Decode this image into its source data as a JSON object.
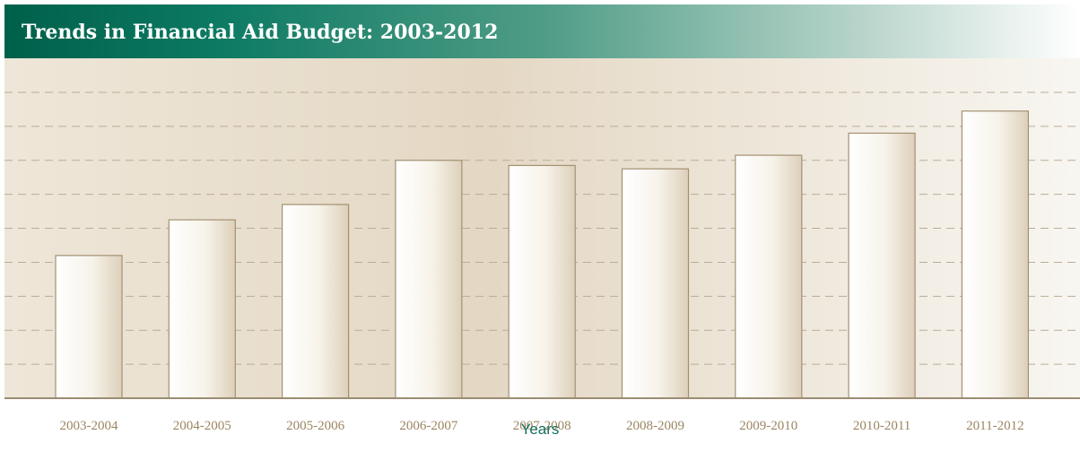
{
  "header": {
    "title": "Trends in Financial Aid Budget: 2003-2012"
  },
  "colors": {
    "header": "#0d7a63",
    "bar_outline": "#a39072",
    "grid": "#b9ad98",
    "tick_label": "#9b8561",
    "axis_label": "#16705f"
  },
  "chart_data": {
    "type": "bar",
    "title": "Trends in Financial Aid Budget: 2003-2012",
    "xlabel": "Years",
    "ylabel": "",
    "categories": [
      "2003-2004",
      "2004-2005",
      "2005-2006",
      "2006-2007",
      "2007-2008",
      "2008-2009",
      "2009-2010",
      "2010-2011",
      "2011-2012"
    ],
    "values": [
      4.2,
      5.25,
      5.7,
      7.0,
      6.85,
      6.75,
      7.15,
      7.8,
      8.45
    ],
    "ylim": [
      0,
      9
    ],
    "grid": true,
    "gridlines": 9,
    "legend": "none"
  }
}
